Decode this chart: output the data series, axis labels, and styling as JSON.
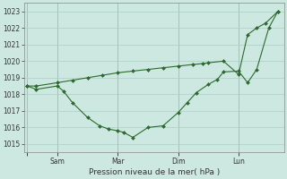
{
  "background_color": "#cce8e0",
  "grid_color": "#aacfc4",
  "line_color": "#2d6a2d",
  "marker_color": "#2d6a2d",
  "xlabel": "Pression niveau de la mer( hPa )",
  "ylim": [
    1014.5,
    1023.5
  ],
  "yticks": [
    1015,
    1016,
    1017,
    1018,
    1019,
    1020,
    1021,
    1022,
    1023
  ],
  "xlim": [
    -0.1,
    8.5
  ],
  "xtick_positions": [
    0,
    1,
    3,
    5,
    7
  ],
  "xtick_labels": [
    "",
    "Sam",
    "Mar",
    "Dim",
    "Lun"
  ],
  "series1_x": [
    0.0,
    0.3,
    1.0,
    1.5,
    2.0,
    2.5,
    3.0,
    3.5,
    4.0,
    4.5,
    5.0,
    5.5,
    5.8,
    6.0,
    6.5,
    7.0,
    7.3,
    7.6,
    7.9,
    8.3
  ],
  "series1_y": [
    1018.5,
    1018.5,
    1018.7,
    1018.85,
    1019.0,
    1019.15,
    1019.3,
    1019.4,
    1019.5,
    1019.6,
    1019.7,
    1019.8,
    1019.85,
    1019.9,
    1020.0,
    1019.2,
    1021.6,
    1022.0,
    1022.3,
    1023.0
  ],
  "series2_x": [
    0.0,
    0.3,
    1.0,
    1.2,
    1.5,
    2.0,
    2.4,
    2.7,
    3.0,
    3.2,
    3.5,
    4.0,
    4.5,
    5.0,
    5.3,
    5.6,
    6.0,
    6.3,
    6.5,
    7.0,
    7.3,
    7.6,
    8.0,
    8.3
  ],
  "series2_y": [
    1018.5,
    1018.3,
    1018.5,
    1018.2,
    1017.5,
    1016.6,
    1016.1,
    1015.9,
    1015.8,
    1015.7,
    1015.4,
    1016.0,
    1016.1,
    1016.9,
    1017.5,
    1018.1,
    1018.6,
    1018.9,
    1019.35,
    1019.4,
    1018.7,
    1019.5,
    1022.0,
    1023.0
  ],
  "vline_x": [
    0,
    1,
    3,
    5,
    7
  ]
}
